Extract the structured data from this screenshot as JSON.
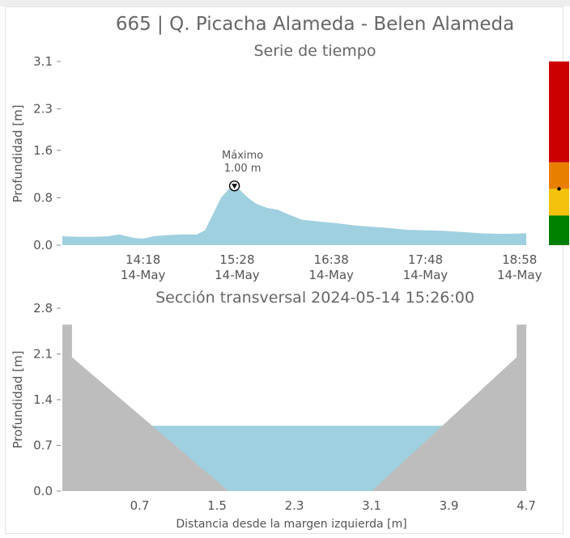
{
  "title": "665 | Q. Picacha Alameda - Belen Alameda",
  "colors": {
    "water": "#9fd0df",
    "ground": "#bdbdbd",
    "text": "#555555",
    "scale": [
      "#cc0000",
      "#e87f00",
      "#f4c20d",
      "#008000"
    ]
  },
  "chart_data": [
    {
      "type": "area",
      "title": "Serie de tiempo",
      "ylabel": "Profundidad [m]",
      "xlabel": "",
      "xlim": [
        "13:18",
        "19:03"
      ],
      "ylim": [
        0.0,
        3.1
      ],
      "yticks": [
        "0.0",
        "0.8",
        "1.6",
        "2.3",
        "3.1"
      ],
      "xticks": [
        {
          "t": "14:18",
          "time": "14:18",
          "date": "14-May"
        },
        {
          "t": "15:28",
          "time": "15:28",
          "date": "14-May"
        },
        {
          "t": "16:38",
          "time": "16:38",
          "date": "14-May"
        },
        {
          "t": "17:48",
          "time": "17:48",
          "date": "14-May"
        },
        {
          "t": "18:58",
          "time": "18:58",
          "date": "14-May"
        }
      ],
      "points": [
        [
          "13:18",
          0.15
        ],
        [
          "13:30",
          0.14
        ],
        [
          "13:42",
          0.14
        ],
        [
          "13:52",
          0.15
        ],
        [
          "14:00",
          0.18
        ],
        [
          "14:06",
          0.15
        ],
        [
          "14:12",
          0.12
        ],
        [
          "14:18",
          0.11
        ],
        [
          "14:26",
          0.15
        ],
        [
          "14:36",
          0.17
        ],
        [
          "14:48",
          0.18
        ],
        [
          "14:58",
          0.18
        ],
        [
          "15:04",
          0.25
        ],
        [
          "15:10",
          0.52
        ],
        [
          "15:16",
          0.8
        ],
        [
          "15:22",
          0.95
        ],
        [
          "15:26",
          1.0
        ],
        [
          "15:30",
          0.93
        ],
        [
          "15:36",
          0.8
        ],
        [
          "15:42",
          0.7
        ],
        [
          "15:50",
          0.63
        ],
        [
          "15:58",
          0.6
        ],
        [
          "16:06",
          0.52
        ],
        [
          "16:16",
          0.43
        ],
        [
          "16:28",
          0.4
        ],
        [
          "16:42",
          0.37
        ],
        [
          "16:56",
          0.33
        ],
        [
          "17:08",
          0.31
        ],
        [
          "17:20",
          0.29
        ],
        [
          "17:34",
          0.26
        ],
        [
          "17:48",
          0.25
        ],
        [
          "18:02",
          0.24
        ],
        [
          "18:16",
          0.22
        ],
        [
          "18:30",
          0.2
        ],
        [
          "18:44",
          0.19
        ],
        [
          "19:03",
          0.2
        ]
      ],
      "annotation": {
        "label": "Máximo",
        "value_text": "1.00 m",
        "t": "15:26",
        "y": 1.0
      },
      "level_scale": [
        {
          "color": "#cc0000",
          "from": 1.4,
          "to": 3.1
        },
        {
          "color": "#e87f00",
          "from": 0.95,
          "to": 1.4
        },
        {
          "color": "#f4c20d",
          "from": 0.5,
          "to": 0.95
        },
        {
          "color": "#008000",
          "from": 0.0,
          "to": 0.5
        }
      ],
      "current_level": 0.95
    },
    {
      "type": "area",
      "title": "Sección transversal 2024-05-14 15:26:00",
      "xlabel": "Distancia desde la margen izquierda [m]",
      "ylabel": "Profundidad [m]",
      "xlim": [
        -0.1,
        4.7
      ],
      "ylim": [
        0.0,
        2.8
      ],
      "xticks": [
        "0.7",
        "1.5",
        "2.3",
        "3.1",
        "3.9",
        "4.7"
      ],
      "yticks": [
        "0.0",
        "0.7",
        "1.4",
        "2.1",
        "2.8"
      ],
      "water_level": 1.0,
      "ground_profile": [
        [
          -0.1,
          0.0
        ],
        [
          -0.1,
          2.55
        ],
        [
          0.0,
          2.55
        ],
        [
          0.0,
          2.05
        ],
        [
          1.62,
          0.0
        ],
        [
          3.1,
          0.0
        ],
        [
          4.6,
          2.05
        ],
        [
          4.6,
          2.55
        ],
        [
          4.7,
          2.55
        ],
        [
          4.7,
          0.0
        ]
      ]
    }
  ]
}
